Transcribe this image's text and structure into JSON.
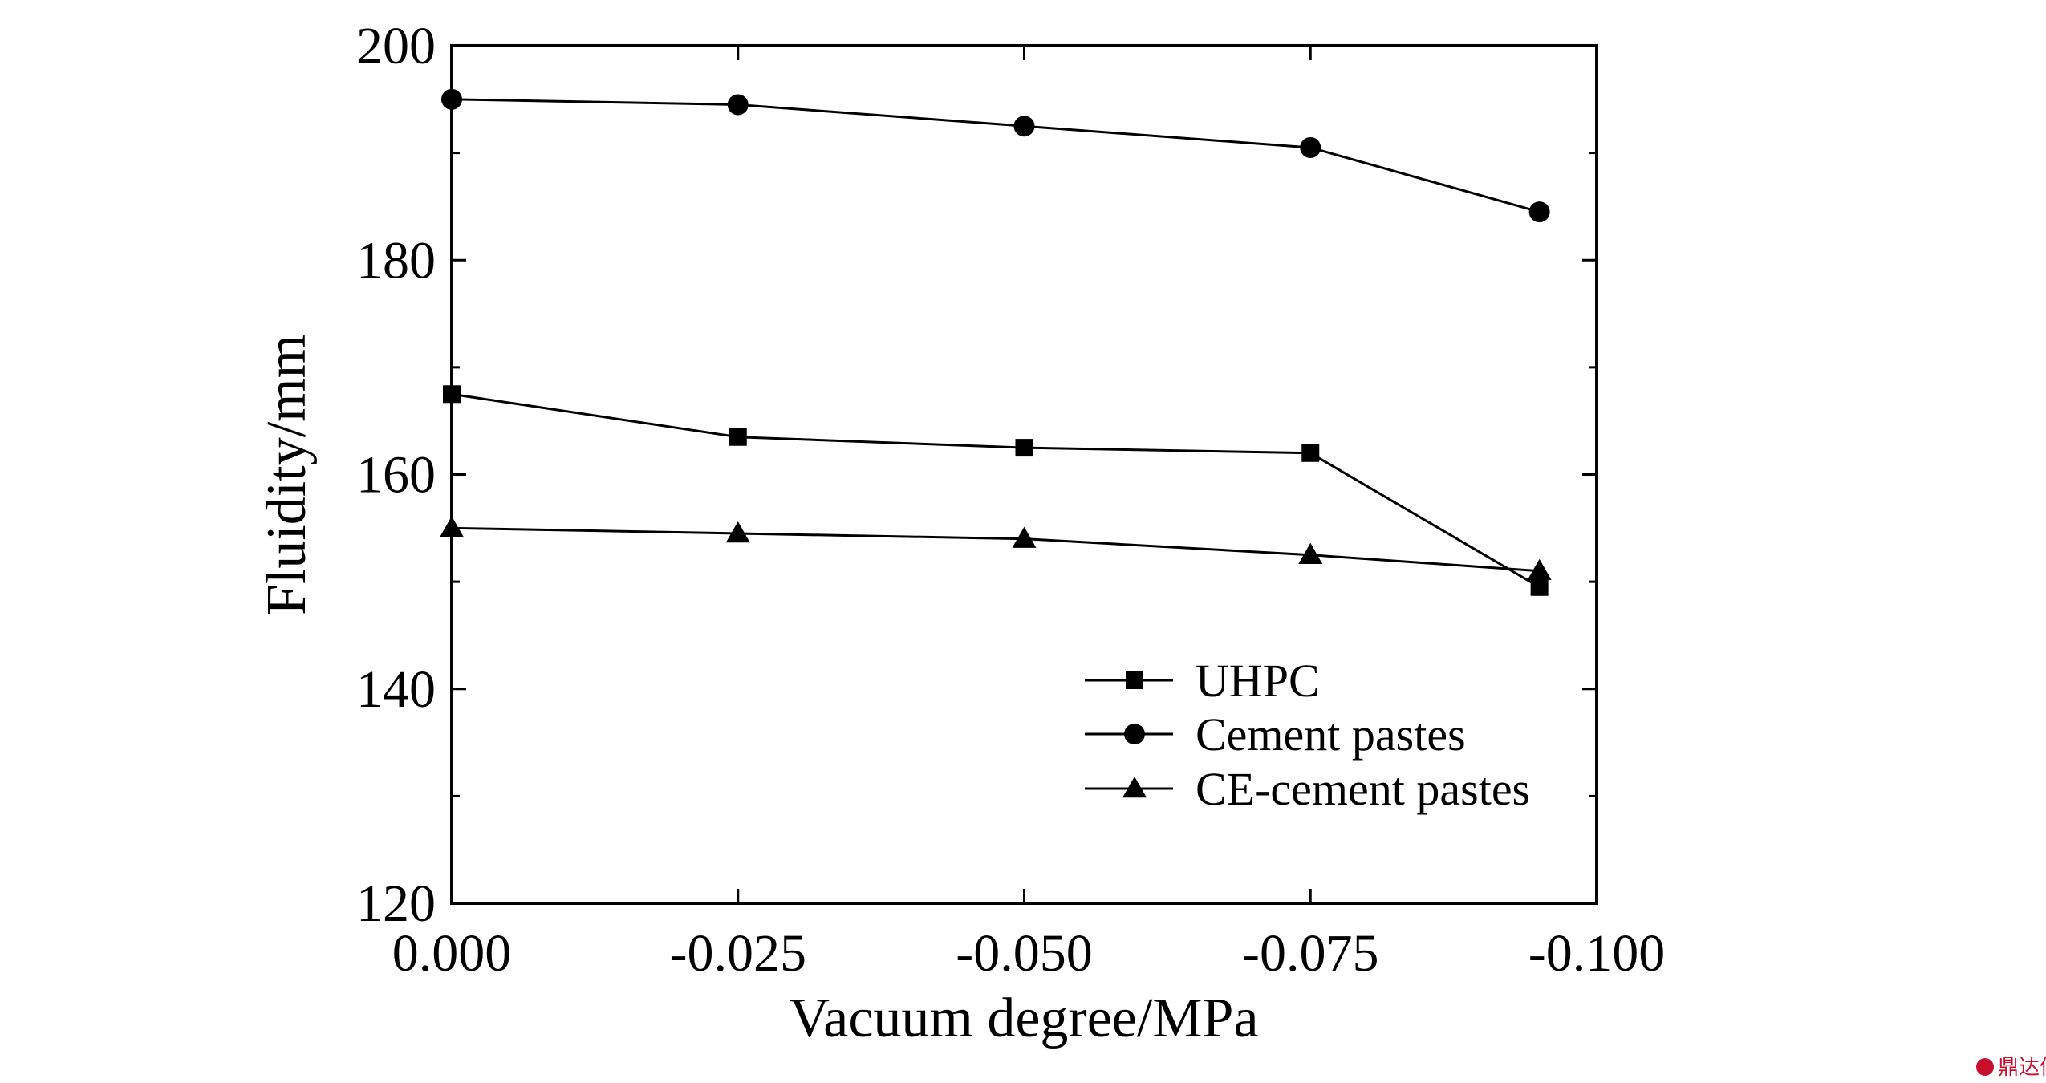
{
  "chart_data": {
    "type": "line",
    "xlabel": "Vacuum degree/MPa",
    "ylabel": "Fluidity/mm",
    "xlim": [
      0.0,
      -0.1
    ],
    "ylim": [
      120,
      200
    ],
    "x_ticks": [
      "0.000",
      "-0.025",
      "-0.050",
      "-0.075",
      "-0.100"
    ],
    "y_ticks": [
      "120",
      "140",
      "160",
      "180",
      "200"
    ],
    "x": [
      0.0,
      -0.025,
      -0.05,
      -0.075,
      -0.095
    ],
    "series": [
      {
        "name": "UHPC",
        "marker": "square",
        "values": [
          167.5,
          163.5,
          162.5,
          162.0,
          149.5
        ]
      },
      {
        "name": "Cement pastes",
        "marker": "circle",
        "values": [
          195.0,
          194.5,
          192.5,
          190.5,
          184.5
        ]
      },
      {
        "name": "CE-cement pastes",
        "marker": "triangle",
        "values": [
          155.0,
          154.5,
          154.0,
          152.5,
          151.0
        ]
      }
    ],
    "grid": false,
    "legend_position": "bottom-right"
  },
  "colors": {
    "line": "#000000",
    "axis": "#000000",
    "background": "#ffffff",
    "watermark": "#c8102e"
  },
  "watermark": {
    "text": "鼎达信",
    "icon": "ddx-logo-icon"
  }
}
